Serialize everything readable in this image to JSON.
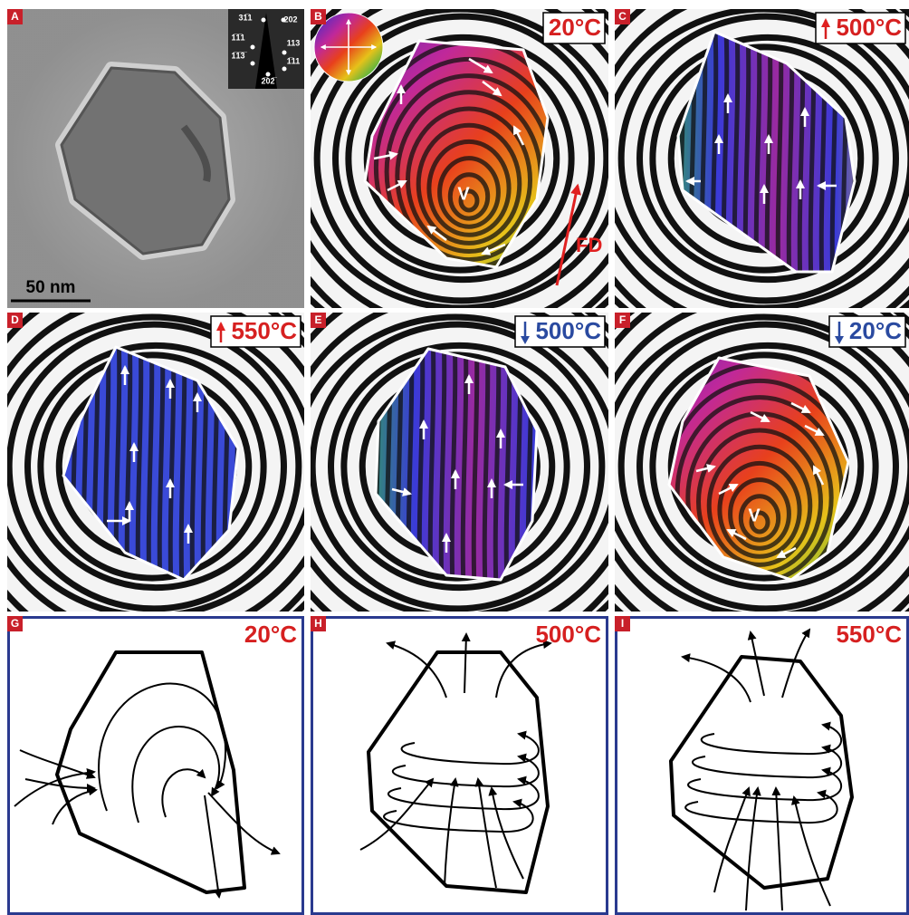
{
  "panels": [
    {
      "letter": "A",
      "scale_bar": "50 nm",
      "diffraction_labels": [
        "31̅1",
        "202",
        "1̅1̅1",
        "1̅1̅3̅",
        "113",
        "1̅11",
        "2̅02̅"
      ]
    },
    {
      "letter": "B",
      "temperature": "20°C",
      "vortex": "V",
      "field_label": "FD"
    },
    {
      "letter": "C",
      "temperature": "500°C"
    },
    {
      "letter": "D",
      "temperature": "550°C"
    },
    {
      "letter": "E",
      "temperature": "500°C"
    },
    {
      "letter": "F",
      "temperature": "20°C",
      "vortex": "V"
    },
    {
      "letter": "G",
      "temperature": "20°C"
    },
    {
      "letter": "H",
      "temperature": "500°C"
    },
    {
      "letter": "I",
      "temperature": "550°C"
    }
  ]
}
